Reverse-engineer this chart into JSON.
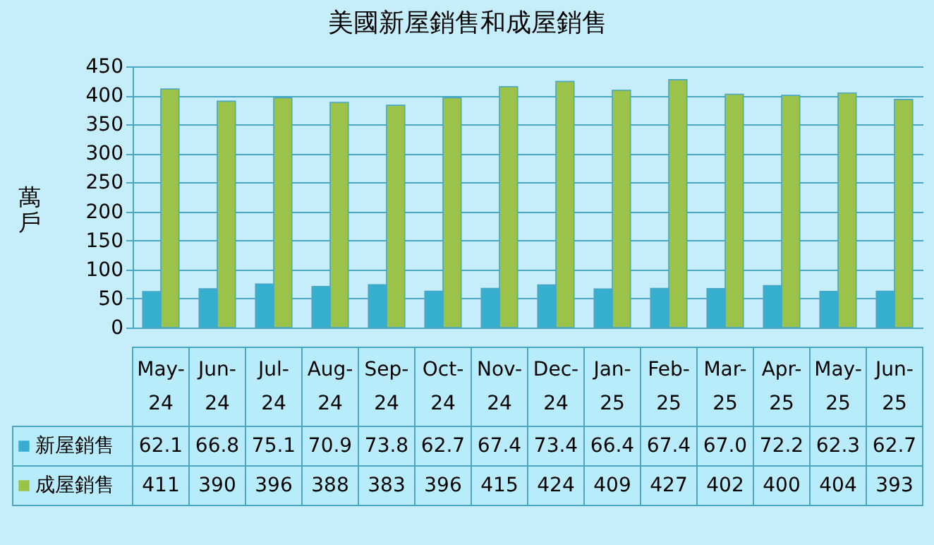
{
  "chart_data": {
    "type": "bar",
    "title": "美國新屋銷售和成屋銷售",
    "ylabel": "萬戶",
    "categories": [
      "May-24",
      "Jun-24",
      "Jul-24",
      "Aug-24",
      "Sep-24",
      "Oct-24",
      "Nov-24",
      "Dec-24",
      "Jan-25",
      "Feb-25",
      "Mar-25",
      "Apr-25",
      "May-25",
      "Jun-25"
    ],
    "series": [
      {
        "name": "新屋銷售",
        "color": "#35aed0",
        "values": [
          62.1,
          66.8,
          75.1,
          70.9,
          73.8,
          62.7,
          67.4,
          73.4,
          66.4,
          67.4,
          67.0,
          72.2,
          62.3,
          62.7
        ],
        "value_labels": [
          "62.1",
          "66.8",
          "75.1",
          "70.9",
          "73.8",
          "62.7",
          "67.4",
          "73.4",
          "66.4",
          "67.4",
          "67.0",
          "72.2",
          "62.3",
          "62.7"
        ]
      },
      {
        "name": "成屋銷售",
        "color": "#9bc34a",
        "values": [
          411,
          390,
          396,
          388,
          383,
          396,
          415,
          424,
          409,
          427,
          402,
          400,
          404,
          393
        ],
        "value_labels": [
          "411",
          "390",
          "396",
          "388",
          "383",
          "396",
          "415",
          "424",
          "409",
          "427",
          "402",
          "400",
          "404",
          "393"
        ]
      }
    ],
    "ylim": [
      0,
      450
    ],
    "yticks": [
      0,
      50,
      100,
      150,
      200,
      250,
      300,
      350,
      400,
      450
    ],
    "grid": "y",
    "legend": "bottom"
  }
}
